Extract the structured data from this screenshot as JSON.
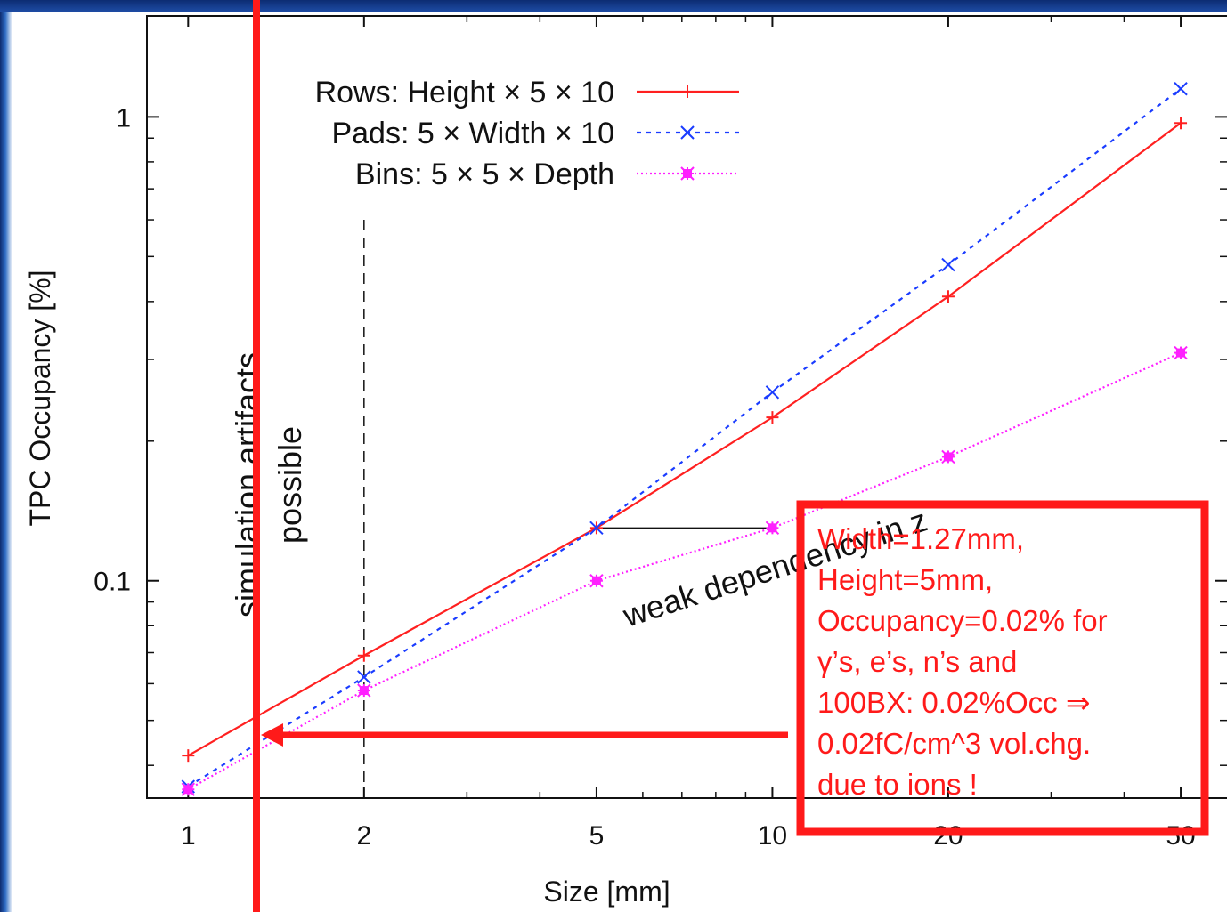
{
  "chart_data": {
    "type": "line",
    "xscale": "log",
    "yscale": "log",
    "xlim": [
      0.85,
      60
    ],
    "ylim": [
      0.034,
      1.65
    ],
    "xlabel": "Size [mm]",
    "ylabel": "TPC Occupancy [%]",
    "x_ticks": [
      {
        "value": 1,
        "label": "1"
      },
      {
        "value": 2,
        "label": "2"
      },
      {
        "value": 5,
        "label": "5"
      },
      {
        "value": 10,
        "label": "10"
      },
      {
        "value": 20,
        "label": "20"
      },
      {
        "value": 50,
        "label": "50"
      }
    ],
    "y_ticks": [
      {
        "value": 0.1,
        "label": "0.1"
      },
      {
        "value": 1,
        "label": "1"
      }
    ],
    "legend_position": "top-left",
    "series": [
      {
        "name": "Rows: Height × 5 × 10",
        "color": "#ff2020",
        "dash": "",
        "marker": "plus",
        "x": [
          1,
          2,
          5,
          10,
          20,
          50
        ],
        "y": [
          0.042,
          0.069,
          0.13,
          0.225,
          0.41,
          0.97
        ]
      },
      {
        "name": "Pads: 5 × Width × 10",
        "color": "#1a3cff",
        "dash": "5,6",
        "marker": "cross",
        "x": [
          1,
          2,
          5,
          10,
          20,
          50
        ],
        "y": [
          0.036,
          0.062,
          0.13,
          0.255,
          0.48,
          1.15
        ]
      },
      {
        "name": "Bins: 5 × 5 × Depth",
        "color": "#ff20ff",
        "dash": "2,3",
        "marker": "star",
        "x": [
          1,
          2,
          5,
          10,
          20,
          50
        ],
        "y": [
          0.0355,
          0.058,
          0.1,
          0.13,
          0.185,
          0.31
        ]
      }
    ],
    "annotations": {
      "rotated_text_1": "simulation artifacts",
      "rotated_text_2": "possible",
      "weak_text": "weak dependency in z"
    },
    "box_lines": [
      "Width=1.27mm,",
      "Height=5mm,",
      "Occupancy=0.02% for",
      "γ’s, e’s, n’s and",
      "100BX: 0.02%Occ ⇒",
      "0.02fC/cm^3 vol.chg.",
      "due to ions !"
    ],
    "colors": {
      "highlight": "#ff1a1a",
      "axis": "#111111"
    }
  }
}
